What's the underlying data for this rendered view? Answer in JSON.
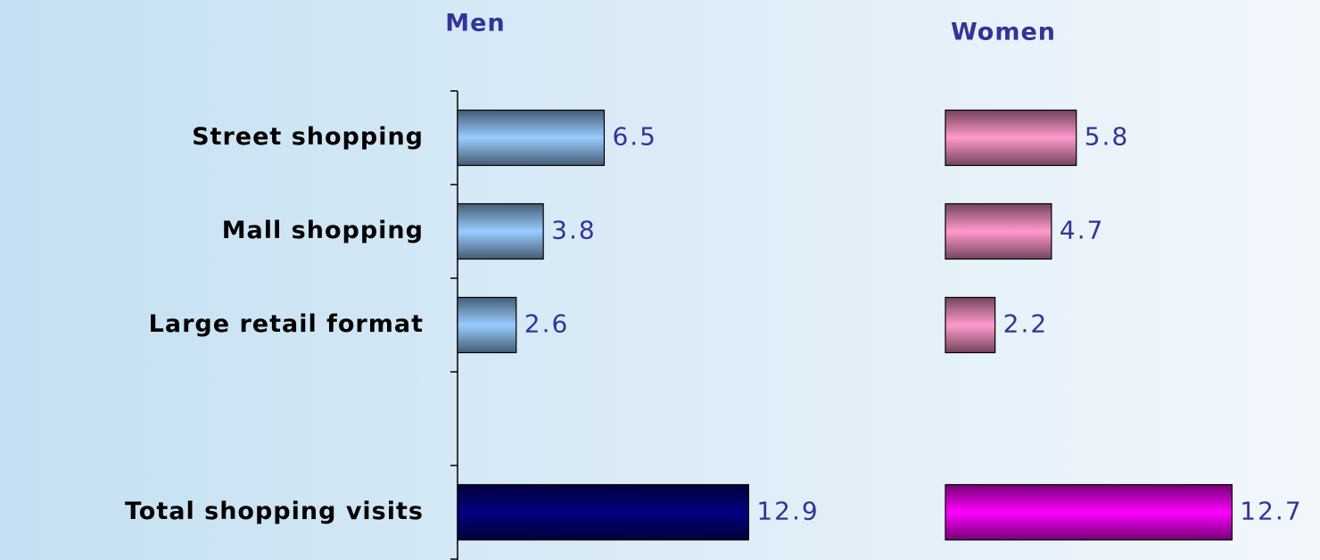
{
  "chart_data": [
    {
      "type": "hbar",
      "title": "Men",
      "categories": [
        "Street shopping",
        "Mall shopping",
        "Large retail format",
        null,
        "Total shopping visits"
      ],
      "values": [
        6.5,
        3.8,
        2.6,
        null,
        12.9
      ],
      "colors": [
        "#99ccff",
        "#99ccff",
        "#99ccff",
        null,
        "#000080"
      ]
    },
    {
      "type": "hbar",
      "title": "Women",
      "values": [
        5.8,
        4.7,
        2.2,
        null,
        12.7
      ],
      "colors": [
        "#ff99cc",
        "#ff99cc",
        "#ff99cc",
        null,
        "#ff00ff"
      ]
    }
  ]
}
